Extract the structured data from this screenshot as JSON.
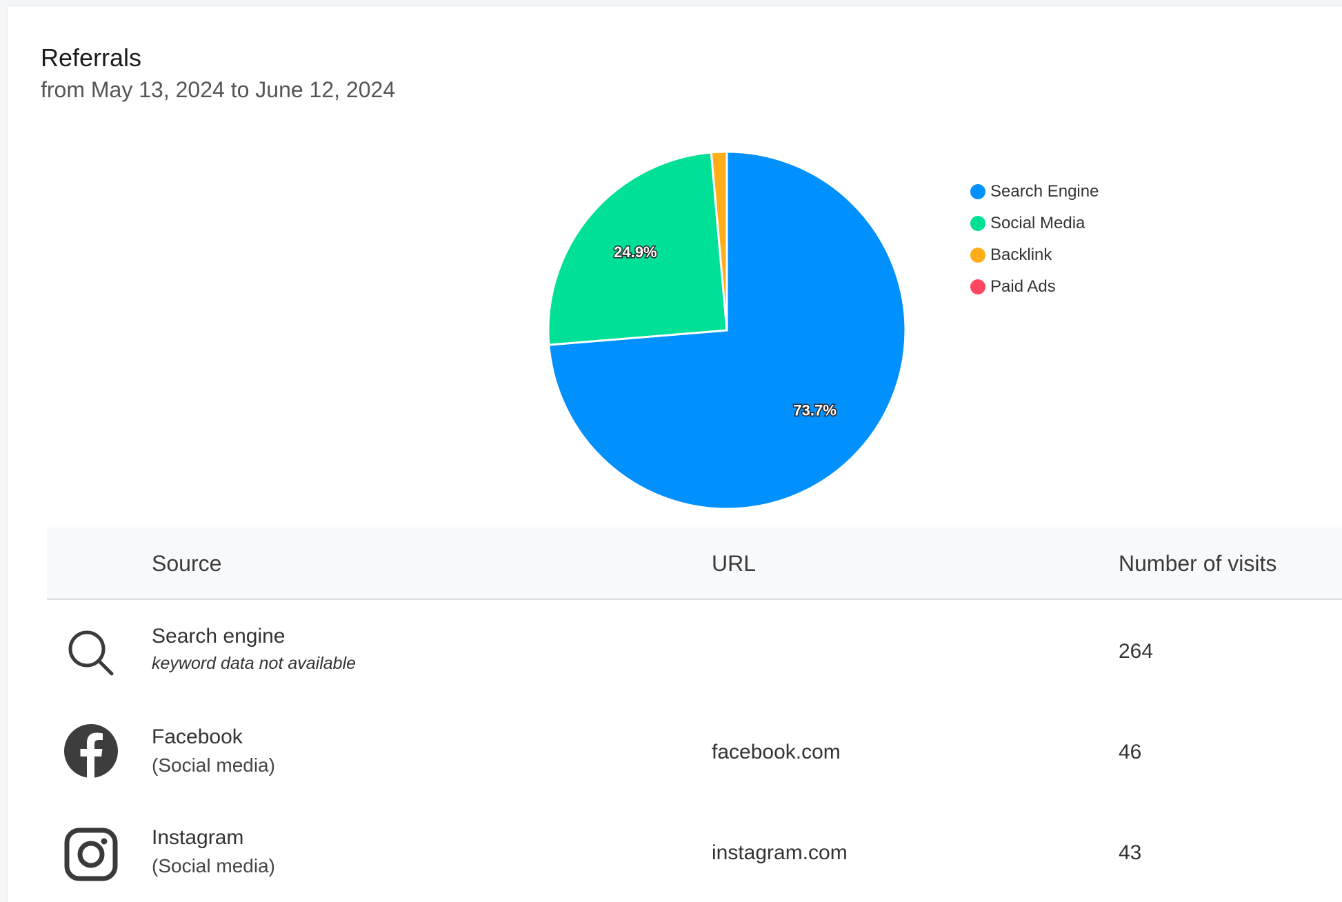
{
  "header": {
    "title": "Referrals",
    "subtitle": "from May 13, 2024 to June 12, 2024"
  },
  "chart_data": {
    "type": "pie",
    "categories": [
      "Search Engine",
      "Social Media",
      "Backlink",
      "Paid Ads"
    ],
    "values": [
      73.7,
      24.9,
      1.4,
      0.0
    ],
    "data_labels": [
      "73.7%",
      "24.9%",
      "",
      ""
    ],
    "colors": [
      "#0091ff",
      "#00e096",
      "#ffae1a",
      "#ff4560"
    ],
    "legend": "right"
  },
  "table": {
    "headers": {
      "source": "Source",
      "url": "URL",
      "visits": "Number of visits"
    },
    "rows": [
      {
        "icon": "search-icon",
        "name": "Search engine",
        "sub": "keyword data not available",
        "url": "",
        "visits": "264"
      },
      {
        "icon": "facebook-icon",
        "name": "Facebook",
        "sub": "(Social media)",
        "url": "facebook.com",
        "visits": "46"
      },
      {
        "icon": "instagram-icon",
        "name": "Instagram",
        "sub": "(Social media)",
        "url": "instagram.com",
        "visits": "43"
      }
    ]
  }
}
